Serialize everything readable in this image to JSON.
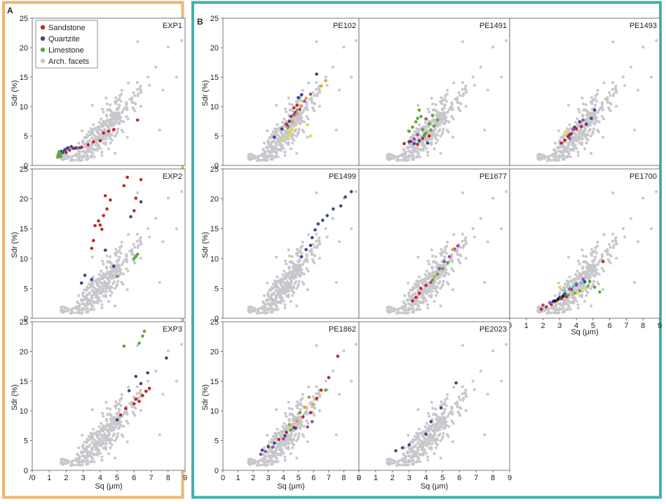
{
  "figure": {
    "panel_a_label": "A",
    "panel_b_label": "B",
    "panel_a_color": "#eeb473",
    "panel_b_color": "#3fb2ad"
  },
  "legend": {
    "items": [
      {
        "label": "Sandstone",
        "color": "#c0282d"
      },
      {
        "label": "Quartzite",
        "color": "#394a8c"
      },
      {
        "label": "Limestone",
        "color": "#5da83a"
      },
      {
        "label": "Arch. facets",
        "color": "#c7c7cc"
      }
    ]
  },
  "axes": {
    "xlabel": "Sq (μm)",
    "ylabel": "Sdr (%)",
    "xlim": [
      0,
      9
    ],
    "ylim": [
      0,
      25
    ],
    "xticks": [
      "0",
      "1",
      "2",
      "3",
      "4",
      "5",
      "6",
      "7",
      "8",
      "9"
    ],
    "yticks": [
      "0",
      "5",
      "10",
      "15",
      "20",
      "25"
    ],
    "first_xtick_label_a": "/0"
  },
  "chart_data": [
    {
      "type": "scatter",
      "title": "EXP1",
      "background_series": "Arch. facets",
      "series": [
        {
          "name": "Sandstone",
          "color": "#c0282d",
          "x": [
            2.4,
            2.6,
            2.9,
            3.3,
            3.6,
            4.0,
            4.2,
            4.5,
            4.8,
            6.2,
            2.0,
            2.2
          ],
          "y": [
            2.9,
            3.0,
            3.1,
            3.5,
            4.0,
            4.2,
            5.5,
            5.8,
            6.1,
            7.7,
            2.2,
            2.6
          ]
        },
        {
          "name": "Quartzite",
          "color": "#394a8c",
          "x": [
            1.6,
            1.7,
            1.9,
            2.0,
            2.1,
            2.3,
            2.5,
            2.8,
            1.8
          ],
          "y": [
            2.0,
            2.4,
            2.6,
            2.8,
            3.0,
            3.2,
            2.9,
            3.0,
            2.2
          ]
        },
        {
          "name": "Limestone",
          "color": "#5da83a",
          "x": [
            1.5,
            1.55,
            1.6,
            1.65,
            1.7,
            1.58,
            1.62,
            1.52
          ],
          "y": [
            1.4,
            1.7,
            1.9,
            2.1,
            1.6,
            2.3,
            1.5,
            1.8
          ]
        }
      ]
    },
    {
      "type": "scatter",
      "title": "EXP2",
      "background_series": "Arch. facets",
      "series": [
        {
          "name": "Sandstone",
          "color": "#c0282d",
          "x": [
            3.5,
            3.6,
            3.7,
            3.9,
            4.0,
            4.2,
            4.3,
            4.4,
            4.6,
            5.4,
            5.6,
            6.0,
            6.1,
            6.4,
            4.1
          ],
          "y": [
            11.7,
            13.0,
            15.5,
            16.3,
            15.6,
            17.2,
            20.5,
            18.3,
            19.8,
            22.2,
            23.6,
            18.0,
            20.1,
            23.2,
            14.9
          ]
        },
        {
          "name": "Quartzite",
          "color": "#394a8c",
          "x": [
            2.9,
            3.1,
            3.5,
            4.3,
            4.8,
            5.8,
            6.4
          ],
          "y": [
            5.9,
            7.2,
            6.5,
            11.4,
            8.7,
            17.0,
            19.5
          ]
        },
        {
          "name": "Limestone",
          "color": "#5da83a",
          "x": [
            5.0,
            6.0,
            6.1,
            6.2
          ],
          "y": [
            7.0,
            10.0,
            10.3,
            10.7
          ]
        }
      ]
    },
    {
      "type": "scatter",
      "title": "EXP3",
      "background_series": "Arch. facets",
      "series": [
        {
          "name": "Sandstone",
          "color": "#c0282d",
          "x": [
            5.2,
            5.5,
            6.0,
            6.1,
            6.3,
            6.5,
            6.7,
            6.9
          ],
          "y": [
            9.3,
            10.4,
            11.2,
            12.0,
            11.6,
            12.6,
            13.3,
            13.8
          ]
        },
        {
          "name": "Quartzite",
          "color": "#394a8c",
          "x": [
            5.0,
            5.7,
            6.1,
            6.4,
            6.8,
            7.9
          ],
          "y": [
            8.5,
            13.4,
            15.8,
            14.6,
            16.4,
            18.9
          ]
        },
        {
          "name": "Limestone",
          "color": "#5da83a",
          "x": [
            5.4,
            6.3,
            6.5,
            6.6
          ],
          "y": [
            20.9,
            21.4,
            22.6,
            23.4
          ]
        }
      ]
    },
    {
      "type": "scatter",
      "title": "PE102",
      "background_series": "Arch. facets",
      "series": [
        {
          "name": "Sandstone",
          "color": "#c0282d",
          "x": [
            4.2,
            4.5,
            4.7,
            4.9,
            4.3
          ],
          "y": [
            7.0,
            8.3,
            9.8,
            10.2,
            6.6
          ]
        },
        {
          "name": "Quartzite",
          "color": "#394a8c",
          "x": [
            3.9,
            4.4,
            4.8,
            5.0,
            5.2,
            6.2,
            3.4
          ],
          "y": [
            6.2,
            7.5,
            9.0,
            11.5,
            12.0,
            15.5,
            4.8
          ]
        },
        {
          "name": "Yellow group",
          "color": "#e8dc38",
          "x": [
            4.4,
            4.5,
            4.6,
            5.6,
            5.8,
            4.0
          ],
          "y": [
            5.2,
            5.6,
            6.1,
            6.9,
            5.0,
            4.5
          ]
        },
        {
          "name": "Orange group",
          "color": "#e79a3a",
          "x": [
            4.6,
            4.9,
            5.2,
            6.8,
            5.5,
            6.5
          ],
          "y": [
            7.4,
            8.8,
            10.1,
            14.4,
            11.4,
            13.5
          ]
        },
        {
          "name": "Purple group",
          "color": "#a04ba0",
          "x": [
            4.7,
            5.1,
            5.4,
            5.8
          ],
          "y": [
            8.6,
            9.5,
            10.9,
            12.1
          ]
        },
        {
          "name": "Olive group",
          "color": "#9aa43e",
          "x": [
            4.3,
            4.9
          ],
          "y": [
            6.4,
            9.4
          ]
        }
      ]
    },
    {
      "type": "scatter",
      "title": "PE1491",
      "background_series": "Arch. facets",
      "series": [
        {
          "name": "Sandstone",
          "color": "#c0282d",
          "x": [
            2.7,
            3.1,
            3.5,
            3.8,
            4.2
          ],
          "y": [
            3.7,
            4.1,
            3.6,
            4.6,
            5.0
          ]
        },
        {
          "name": "Quartzite",
          "color": "#394a8c",
          "x": [
            3.0,
            3.3,
            3.6,
            3.9,
            4.1
          ],
          "y": [
            4.0,
            3.7,
            4.2,
            5.1,
            3.8
          ]
        },
        {
          "name": "Limestone",
          "color": "#5da83a",
          "x": [
            3.0,
            3.2,
            3.4,
            3.5,
            3.7,
            3.8,
            4.0,
            4.2,
            4.4,
            4.5,
            4.7,
            3.6,
            3.9,
            4.3
          ],
          "y": [
            5.8,
            6.5,
            7.4,
            8.0,
            8.3,
            6.1,
            5.5,
            7.1,
            8.5,
            6.7,
            7.7,
            9.4,
            5.0,
            6.0
          ]
        },
        {
          "name": "Purple group",
          "color": "#a04ba0",
          "x": [
            3.3,
            3.5,
            4.0
          ],
          "y": [
            4.5,
            5.2,
            7.9
          ]
        }
      ]
    },
    {
      "type": "scatter",
      "title": "PE1493",
      "background_series": "Arch. facets",
      "series": [
        {
          "name": "Sandstone",
          "color": "#c0282d",
          "x": [
            3.1,
            3.3,
            3.5,
            3.7,
            4.0,
            4.3
          ],
          "y": [
            3.8,
            4.3,
            4.9,
            5.4,
            6.2,
            6.6
          ]
        },
        {
          "name": "Quartzite",
          "color": "#394a8c",
          "x": [
            3.6,
            3.9,
            4.2,
            4.6,
            4.9,
            5.1
          ],
          "y": [
            5.2,
            6.5,
            7.4,
            7.0,
            8.0,
            9.4
          ]
        },
        {
          "name": "Yellow group",
          "color": "#e8dc38",
          "x": [
            3.3,
            3.5
          ],
          "y": [
            5.0,
            5.7
          ]
        },
        {
          "name": "Purple group",
          "color": "#a04ba0",
          "x": [
            3.6,
            3.8,
            4.4
          ],
          "y": [
            4.6,
            6.1,
            7.7
          ]
        }
      ]
    },
    {
      "type": "scatter",
      "title": "PE1499",
      "background_series": "Arch. facets",
      "series": [
        {
          "name": "Quartzite",
          "color": "#394a8c",
          "x": [
            5.2,
            5.5,
            5.8,
            5.9,
            6.1,
            6.3,
            6.6,
            6.9,
            7.3,
            7.8,
            8.1,
            8.5
          ],
          "y": [
            10.3,
            11.5,
            12.2,
            13.5,
            14.8,
            15.8,
            16.4,
            17.2,
            18.3,
            18.8,
            20.3,
            21.2
          ]
        }
      ]
    },
    {
      "type": "scatter",
      "title": "PE1677",
      "background_series": "Arch. facets",
      "series": [
        {
          "name": "Sandstone",
          "color": "#c0282d",
          "x": [
            3.2,
            3.4,
            3.6,
            3.7,
            4.0
          ],
          "y": [
            2.9,
            3.5,
            4.2,
            5.0,
            5.5
          ]
        },
        {
          "name": "Limestone",
          "color": "#5da83a",
          "x": [
            4.4,
            4.7,
            5.0,
            5.3
          ],
          "y": [
            6.4,
            7.4,
            8.3,
            9.3
          ]
        },
        {
          "name": "Purple group",
          "color": "#a04ba0",
          "x": [
            4.3,
            4.8,
            5.1,
            5.4,
            5.7,
            5.9
          ],
          "y": [
            6.0,
            8.3,
            9.5,
            10.3,
            11.6,
            12.1
          ]
        },
        {
          "name": "Orange group",
          "color": "#e79a3a",
          "x": [
            4.5,
            5.6
          ],
          "y": [
            7.0,
            11.5
          ]
        }
      ]
    },
    {
      "type": "scatter",
      "title": "PE1700",
      "background_series": "Arch. facets",
      "series": [
        {
          "name": "Sandstone",
          "color": "#c0282d",
          "x": [
            1.9,
            2.2,
            2.5,
            2.8,
            3.1,
            3.4,
            5.6
          ],
          "y": [
            1.5,
            1.9,
            2.3,
            2.9,
            3.3,
            3.6,
            9.5
          ]
        },
        {
          "name": "Quartzite",
          "color": "#394a8c",
          "x": [
            2.6,
            3.0,
            3.3,
            3.7,
            4.0,
            4.5
          ],
          "y": [
            2.8,
            3.5,
            4.1,
            4.8,
            5.6,
            6.1
          ]
        },
        {
          "name": "Limestone",
          "color": "#5da83a",
          "x": [
            3.5,
            4.2,
            4.8,
            5.1,
            5.4
          ],
          "y": [
            3.9,
            4.6,
            6.2,
            5.2,
            4.4
          ]
        },
        {
          "name": "Black group",
          "color": "#1a1a1a",
          "x": [
            2.7,
            2.9,
            3.2
          ],
          "y": [
            2.9,
            3.2,
            3.7
          ]
        },
        {
          "name": "Yellow group",
          "color": "#e8dc38",
          "x": [
            3.0,
            3.6,
            4.1,
            4.5
          ],
          "y": [
            5.2,
            4.8,
            4.3,
            5.0
          ]
        },
        {
          "name": "Purple group",
          "color": "#a04ba0",
          "x": [
            2.0,
            2.4,
            3.6,
            4.0,
            4.4
          ],
          "y": [
            2.2,
            2.6,
            4.9,
            5.7,
            6.5
          ]
        },
        {
          "name": "Cyan group",
          "color": "#5fc7d6",
          "x": [
            3.3,
            3.8,
            4.3
          ],
          "y": [
            4.6,
            5.3,
            5.9
          ]
        },
        {
          "name": "Olive group",
          "color": "#9aa43e",
          "x": [
            3.9,
            4.7
          ],
          "y": [
            4.2,
            5.4
          ]
        }
      ]
    },
    {
      "type": "scatter",
      "title": "PE1862",
      "background_series": "Arch. facets",
      "series": [
        {
          "name": "Sandstone",
          "color": "#c0282d",
          "x": [
            3.7,
            4.2,
            4.7,
            5.3,
            5.8,
            6.2,
            6.5,
            7.0,
            7.6
          ],
          "y": [
            5.2,
            6.4,
            7.2,
            9.0,
            9.7,
            12.1,
            13.5,
            15.6,
            19.2
          ]
        },
        {
          "name": "Quartzite",
          "color": "#394a8c",
          "x": [
            2.6,
            3.0,
            3.4,
            4.1,
            4.8
          ],
          "y": [
            3.4,
            4.0,
            4.6,
            5.8,
            7.1
          ]
        },
        {
          "name": "Limestone",
          "color": "#5da83a",
          "x": [
            4.5,
            5.1,
            6.8
          ],
          "y": [
            6.8,
            9.7,
            13.5
          ]
        },
        {
          "name": "Purple group",
          "color": "#a04ba0",
          "x": [
            2.5,
            2.8,
            3.3,
            4.0,
            5.6,
            5.9
          ],
          "y": [
            2.7,
            3.2,
            3.9,
            5.3,
            7.3,
            8.2
          ]
        },
        {
          "name": "Orange group",
          "color": "#e79a3a",
          "x": [
            4.9,
            5.4,
            6.0
          ],
          "y": [
            8.3,
            10.6,
            11.1
          ]
        },
        {
          "name": "Olive group",
          "color": "#9aa43e",
          "x": [
            4.4,
            5.7
          ],
          "y": [
            7.7,
            12.3
          ]
        }
      ]
    },
    {
      "type": "scatter",
      "title": "PE2023",
      "background_series": "Arch. facets",
      "series": [
        {
          "name": "Quartzite",
          "color": "#394a8c",
          "x": [
            2.2,
            2.6,
            3.0,
            4.0,
            4.3,
            4.9,
            5.8
          ],
          "y": [
            3.3,
            3.8,
            4.3,
            6.1,
            8.2,
            10.5,
            14.7
          ]
        }
      ]
    }
  ]
}
